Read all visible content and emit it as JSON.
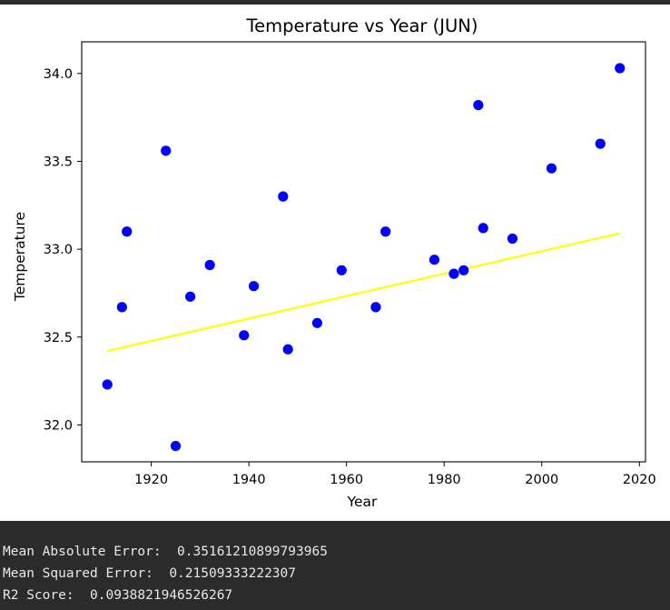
{
  "chart_data": {
    "type": "scatter",
    "title": "Temperature vs Year (JUN)",
    "xlabel": "Year",
    "ylabel": "Temperature",
    "xlim": [
      1905.75,
      2021.25
    ],
    "ylim": [
      31.79,
      34.18
    ],
    "xticks": [
      1920,
      1940,
      1960,
      1980,
      2000,
      2020
    ],
    "xtick_labels": [
      "1920",
      "1940",
      "1960",
      "1980",
      "2000",
      "2020"
    ],
    "yticks": [
      32.0,
      32.5,
      33.0,
      33.5,
      34.0
    ],
    "ytick_labels": [
      "32.0",
      "32.5",
      "33.0",
      "33.5",
      "34.0"
    ],
    "grid": false,
    "series": [
      {
        "kind": "scatter",
        "color": "#0000ff",
        "points": [
          {
            "x": 1911,
            "y": 32.23
          },
          {
            "x": 1914,
            "y": 32.67
          },
          {
            "x": 1915,
            "y": 33.1
          },
          {
            "x": 1923,
            "y": 33.56
          },
          {
            "x": 1925,
            "y": 31.88
          },
          {
            "x": 1928,
            "y": 32.73
          },
          {
            "x": 1932,
            "y": 32.91
          },
          {
            "x": 1939,
            "y": 32.51
          },
          {
            "x": 1941,
            "y": 32.79
          },
          {
            "x": 1947,
            "y": 33.3
          },
          {
            "x": 1948,
            "y": 32.43
          },
          {
            "x": 1954,
            "y": 32.58
          },
          {
            "x": 1959,
            "y": 32.88
          },
          {
            "x": 1966,
            "y": 32.67
          },
          {
            "x": 1968,
            "y": 33.1
          },
          {
            "x": 1978,
            "y": 32.94
          },
          {
            "x": 1982,
            "y": 32.86
          },
          {
            "x": 1984,
            "y": 32.88
          },
          {
            "x": 1987,
            "y": 33.82
          },
          {
            "x": 1988,
            "y": 33.12
          },
          {
            "x": 1994,
            "y": 33.06
          },
          {
            "x": 2002,
            "y": 33.46
          },
          {
            "x": 2012,
            "y": 33.6
          },
          {
            "x": 2016,
            "y": 34.03
          }
        ]
      },
      {
        "kind": "line",
        "color": "#ffff00",
        "points": [
          {
            "x": 1911,
            "y": 32.42
          },
          {
            "x": 2016,
            "y": 33.09
          }
        ]
      }
    ]
  },
  "output": {
    "mae": "Mean Absolute Error:  0.35161210899793965",
    "mse": "Mean Squared Error:  0.21509333222307",
    "r2": "R2 Score:  0.0938821946526267"
  }
}
